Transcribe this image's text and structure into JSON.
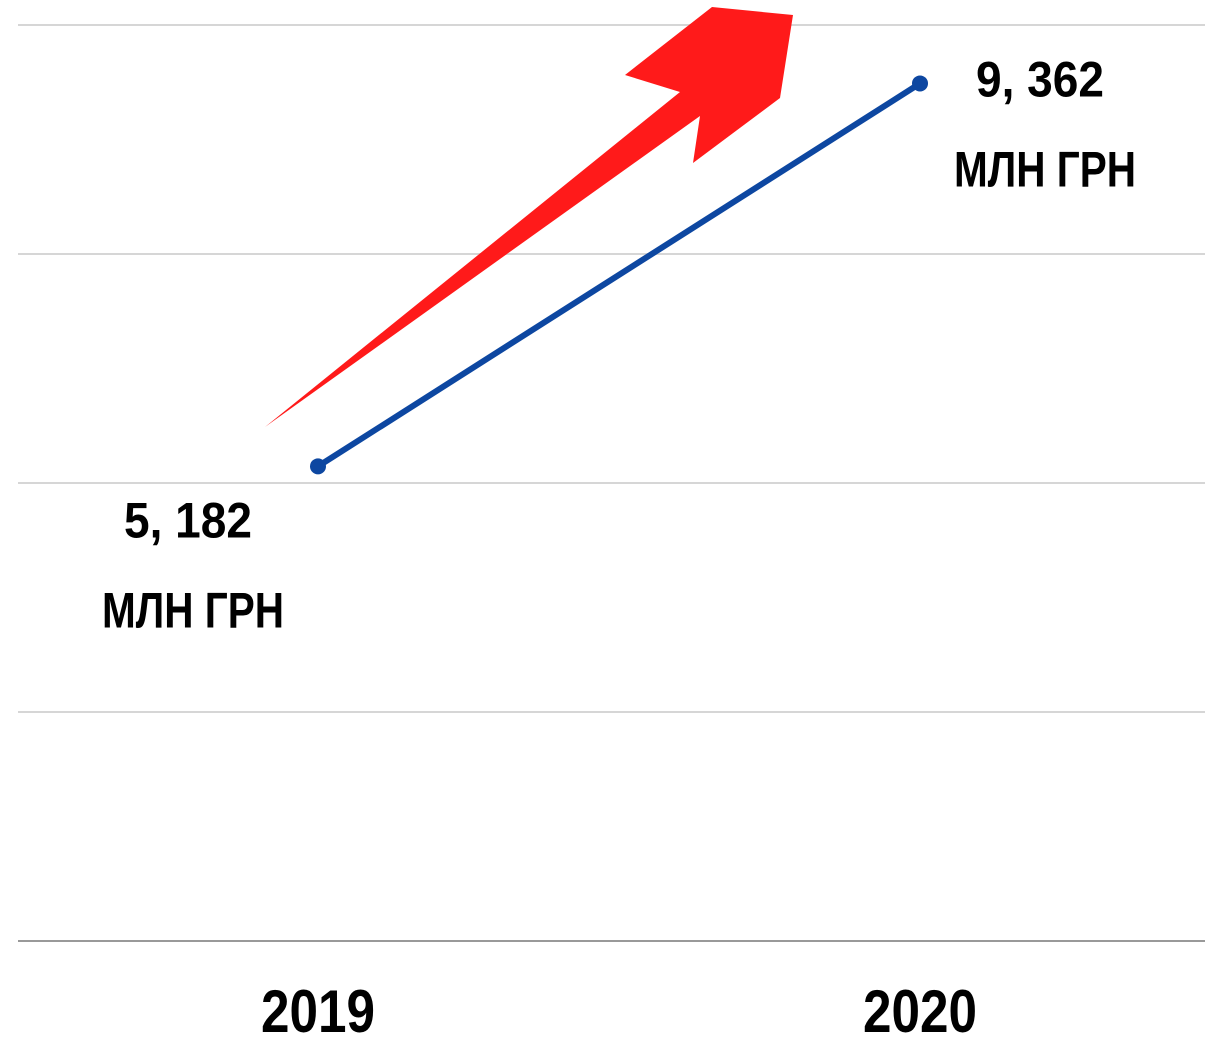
{
  "chart_data": {
    "type": "line",
    "categories": [
      "2019",
      "2020"
    ],
    "series": [
      {
        "color": "#0d47a1",
        "values": [
          5.182,
          9.362
        ],
        "value_labels": [
          "5, 182",
          "9, 362"
        ]
      }
    ],
    "unit": "МЛН ГРН",
    "ylim": [
      0,
      10
    ],
    "yticks": [
      0,
      2.5,
      5,
      7.5,
      10
    ],
    "grid": true
  }
}
